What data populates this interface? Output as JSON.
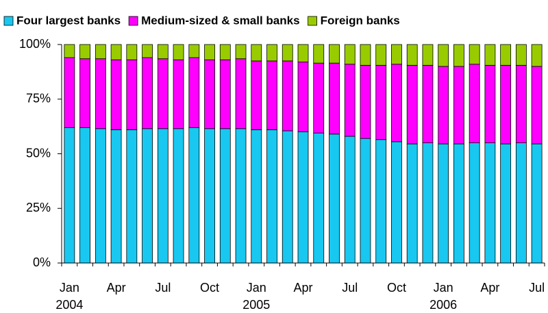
{
  "chart_data": {
    "type": "stacked-bar",
    "categories": [
      "Jan",
      null,
      null,
      "Apr",
      null,
      null,
      "Jul",
      null,
      null,
      "Oct",
      null,
      null,
      "Jan",
      null,
      null,
      "Apr",
      null,
      null,
      "Jul",
      null,
      null,
      "Oct",
      null,
      null,
      "Jan",
      null,
      null,
      "Apr",
      null,
      null,
      "Jul"
    ],
    "year_labels": [
      "2004",
      "2005",
      "2006"
    ],
    "series": [
      {
        "name": "Four largest banks",
        "color": "#19c8f0",
        "values": [
          62,
          62,
          61.5,
          61,
          61,
          61.5,
          61.5,
          61.5,
          62,
          61.5,
          61.5,
          61.5,
          61,
          61,
          60.5,
          60,
          59.5,
          59,
          58,
          57,
          56.5,
          55.5,
          54.5,
          55,
          54.5,
          54.5,
          55,
          55,
          54.5,
          55,
          54.5
        ]
      },
      {
        "name": "Medium-sized & small banks",
        "color": "#ff00ff",
        "values": [
          32,
          31.5,
          32,
          32,
          32,
          32.5,
          32,
          31.5,
          32,
          31.5,
          31.5,
          32,
          31.5,
          31.5,
          32,
          32,
          32,
          32.5,
          33,
          33.5,
          34,
          35.5,
          36,
          35.5,
          35.5,
          35.5,
          36,
          35.5,
          36,
          35.5,
          35.5
        ]
      },
      {
        "name": "Foreign banks",
        "color": "#99cc00",
        "values": [
          6,
          6.5,
          6.5,
          7,
          7,
          6,
          6.5,
          7,
          6,
          7,
          7,
          6.5,
          7.5,
          7.5,
          7.5,
          8,
          8.5,
          8.5,
          9,
          9.5,
          9.5,
          9,
          9.5,
          9.5,
          10,
          10,
          9,
          9.5,
          9.5,
          9.5,
          10
        ]
      }
    ],
    "ylim": [
      0,
      100
    ],
    "yticks": [
      {
        "value": 0,
        "label": "0%"
      },
      {
        "value": 25,
        "label": "25%"
      },
      {
        "value": 50,
        "label": "50%"
      },
      {
        "value": 75,
        "label": "75%"
      },
      {
        "value": 100,
        "label": "100%"
      }
    ],
    "grid": false,
    "legend": "top"
  }
}
